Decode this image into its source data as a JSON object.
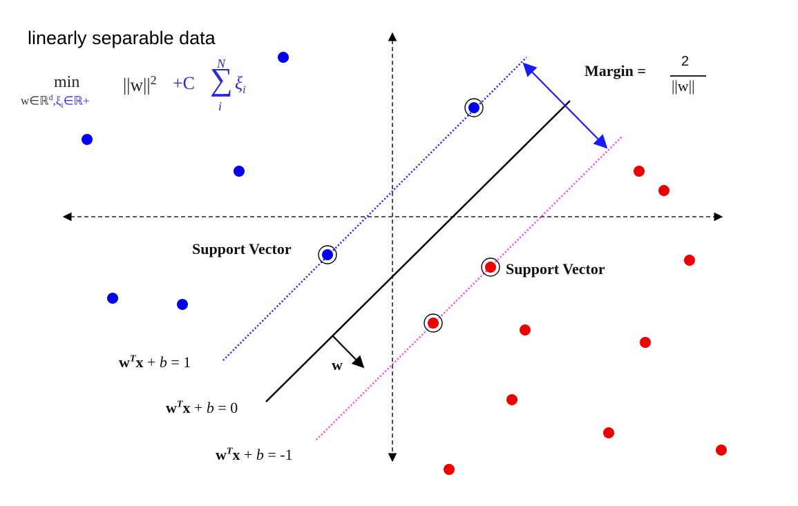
{
  "title": "linearly separable data",
  "formula": {
    "min": "min",
    "under_w": "w∈ℝ",
    "under_d": "d",
    "under_rest": ",ξ",
    "under_i": "i",
    "under_tail": "∈ℝ+",
    "norm": "||w||",
    "norm_exp": "2",
    "plus_c": "+C",
    "sum_top": "N",
    "sum_symbol": "∑",
    "sum_bottom": "i",
    "xi": "ξ",
    "xi_sub": "i"
  },
  "margin": {
    "label": "Margin =",
    "numerator": "2",
    "denominator": "||w||"
  },
  "labels": {
    "support_vector_left": "Support Vector",
    "support_vector_right": "Support Vector",
    "w_vector": "w"
  },
  "equations": {
    "plus_one": {
      "w": "w",
      "sup": "T",
      "x": "x",
      "rest": " + ",
      "b": "b",
      "rhs": " = 1"
    },
    "zero": {
      "w": "w",
      "sup": "T",
      "x": "x",
      "rest": " + ",
      "b": "b",
      "rhs": " = 0"
    },
    "minus_one": {
      "w": "w",
      "sup": "T",
      "x": "x",
      "rest": " + ",
      "b": "b",
      "rhs": " = -1"
    }
  },
  "colors": {
    "class_positive": "#0000ee",
    "class_negative": "#ee0000",
    "plus_one_boundary": "#1a1aff",
    "minus_one_boundary": "#ff33ff",
    "decision_boundary": "#000000",
    "margin_arrow": "#1a1aff"
  },
  "points": {
    "blue_count_note": "",
    "blue_support_vectors": 2,
    "red_support_vectors": 2
  }
}
